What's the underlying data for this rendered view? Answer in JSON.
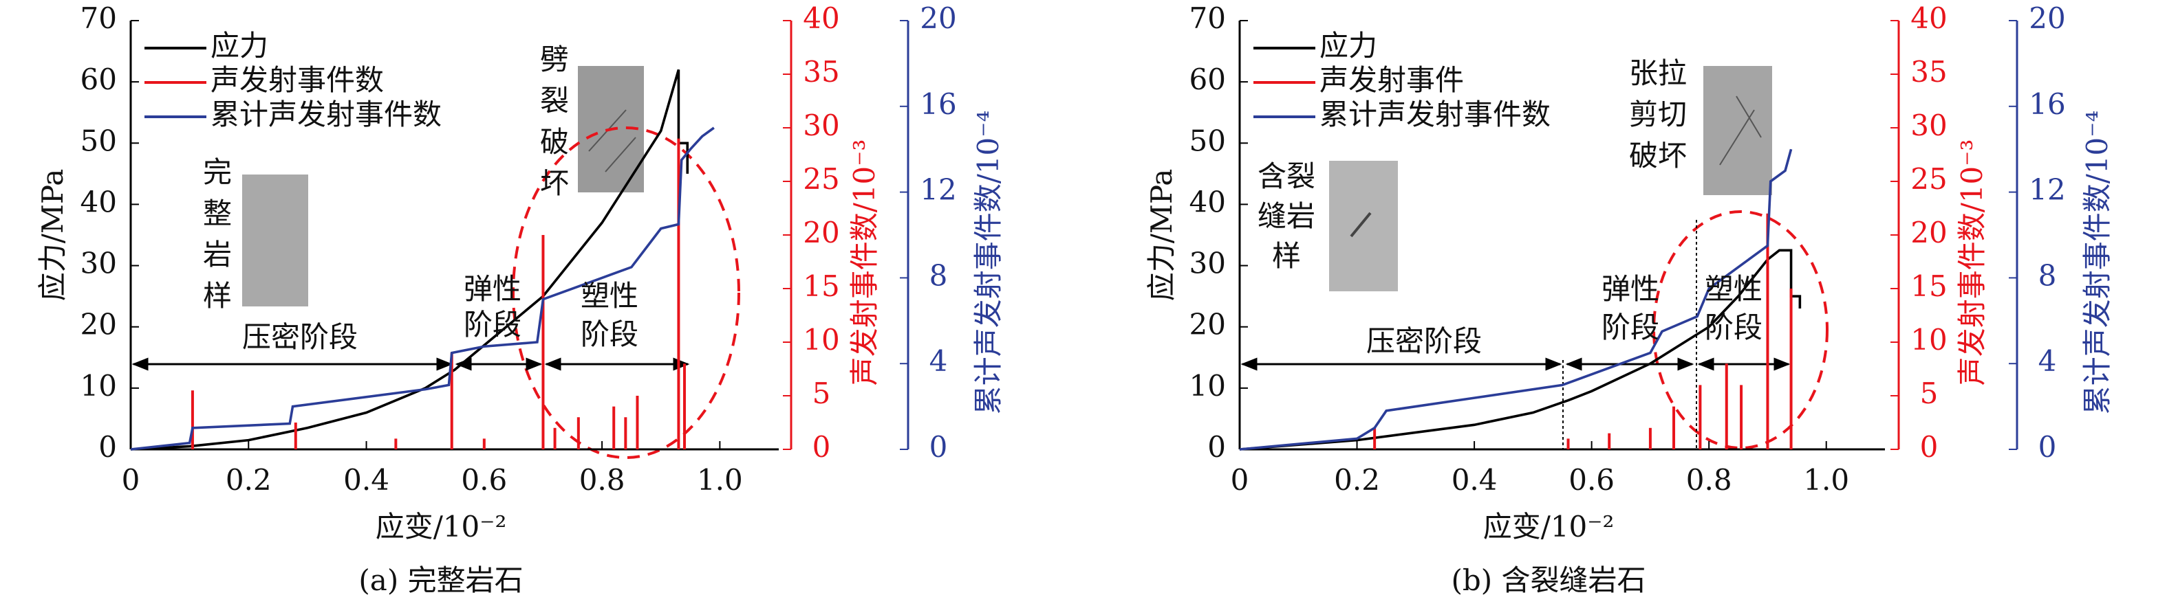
{
  "chart_data": [
    {
      "type": "line",
      "title": "(a) 完整岩石",
      "xlabel": "应变/10⁻²",
      "ylabel": "应力/MPa",
      "y2label": "声发射事件数/10⁻³",
      "y3label": "累计声发射事件数/10⁻⁴",
      "xlim": [
        0,
        1.1
      ],
      "xticks": [
        0,
        0.2,
        0.4,
        0.6,
        0.8,
        {
          "value": 1,
          "label": "1.0"
        }
      ],
      "ylim": [
        0,
        70
      ],
      "yticks": [
        0,
        10,
        20,
        30,
        40,
        50,
        60,
        70
      ],
      "y2lim": [
        0,
        40
      ],
      "y2ticks": [
        0,
        5,
        10,
        15,
        20,
        25,
        30,
        35,
        40
      ],
      "y3lim": [
        0,
        20
      ],
      "y3ticks": [
        0,
        4,
        8,
        12,
        16,
        20
      ],
      "annotations": [
        "压密阶段",
        "弹性阶段",
        "塑性阶段",
        "劈裂破坏",
        "完整岩样"
      ],
      "series": [
        {
          "name": "应力",
          "color": "#000000",
          "axis": "y",
          "x": [
            0,
            0.1,
            0.2,
            0.3,
            0.4,
            0.5,
            0.55,
            0.6,
            0.7,
            0.8,
            0.9,
            0.93,
            0.93,
            0.945,
            0.945
          ],
          "values": [
            0,
            0.5,
            1.5,
            3.5,
            6,
            10,
            13,
            17,
            25,
            37,
            52,
            62,
            50,
            50,
            45
          ]
        },
        {
          "name": "声发射事件数",
          "color": "#e8141b",
          "axis": "y2",
          "type": "bar",
          "x": [
            0.105,
            0.28,
            0.45,
            0.545,
            0.6,
            0.7,
            0.72,
            0.76,
            0.82,
            0.84,
            0.86,
            0.93,
            0.94
          ],
          "values": [
            5.5,
            2.5,
            1,
            9,
            1,
            20,
            2,
            3,
            4,
            3,
            5,
            29,
            8
          ]
        },
        {
          "name": "累计声发射事件数",
          "color": "#2b3d98",
          "axis": "y3",
          "x": [
            0,
            0.1,
            0.105,
            0.27,
            0.275,
            0.5,
            0.54,
            0.545,
            0.6,
            0.69,
            0.7,
            0.8,
            0.85,
            0.9,
            0.93,
            0.935,
            0.95,
            0.97,
            0.99
          ],
          "values": [
            0,
            0.3,
            1,
            1.2,
            2,
            2.8,
            3,
            4.5,
            4.8,
            5,
            7,
            8,
            8.5,
            10.3,
            10.5,
            13.5,
            14,
            14.6,
            15
          ]
        }
      ]
    },
    {
      "type": "line",
      "title": "(b) 含裂缝岩石",
      "xlabel": "应变/10⁻²",
      "ylabel": "应力/MPa",
      "y2label": "声发射事件数/10⁻³",
      "y3label": "累计声发射事件数/10⁻⁴",
      "xlim": [
        0,
        1.1
      ],
      "xticks": [
        0,
        0.2,
        0.4,
        0.6,
        0.8,
        {
          "value": 1,
          "label": "1.0"
        }
      ],
      "ylim": [
        0,
        70
      ],
      "yticks": [
        0,
        10,
        20,
        30,
        40,
        50,
        60,
        70
      ],
      "y2lim": [
        0,
        40
      ],
      "y2ticks": [
        0,
        5,
        10,
        15,
        20,
        25,
        30,
        35,
        40
      ],
      "y3lim": [
        0,
        20
      ],
      "y3ticks": [
        0,
        4,
        8,
        12,
        16,
        20
      ],
      "annotations": [
        "压密阶段",
        "弹性阶段",
        "塑性阶段",
        "含裂缝岩样",
        "张拉剪切破坏"
      ],
      "series": [
        {
          "name": "应力",
          "color": "#000000",
          "axis": "y",
          "x": [
            0,
            0.2,
            0.4,
            0.5,
            0.56,
            0.6,
            0.7,
            0.8,
            0.85,
            0.9,
            0.92,
            0.94,
            0.94,
            0.955,
            0.955
          ],
          "values": [
            0,
            1.5,
            4,
            6,
            8,
            9.5,
            14,
            20,
            25,
            31,
            32.5,
            32.5,
            25,
            25,
            23
          ]
        },
        {
          "name": "声发射事件",
          "color": "#e8141b",
          "axis": "y2",
          "type": "bar",
          "x": [
            0.23,
            0.56,
            0.63,
            0.7,
            0.74,
            0.785,
            0.83,
            0.855,
            0.9,
            0.94
          ],
          "values": [
            2,
            1,
            1.5,
            2,
            4,
            6,
            8,
            6,
            22,
            15
          ]
        },
        {
          "name": "累计声发射事件数",
          "color": "#2b3d98",
          "axis": "y3",
          "x": [
            0,
            0.2,
            0.23,
            0.25,
            0.4,
            0.55,
            0.6,
            0.7,
            0.72,
            0.78,
            0.8,
            0.85,
            0.9,
            0.905,
            0.93,
            0.94
          ],
          "values": [
            0,
            0.5,
            1,
            1.8,
            2.4,
            3,
            3.5,
            4.5,
            5.5,
            6.2,
            7.5,
            8.5,
            9.5,
            12.5,
            13,
            14
          ]
        }
      ]
    }
  ]
}
